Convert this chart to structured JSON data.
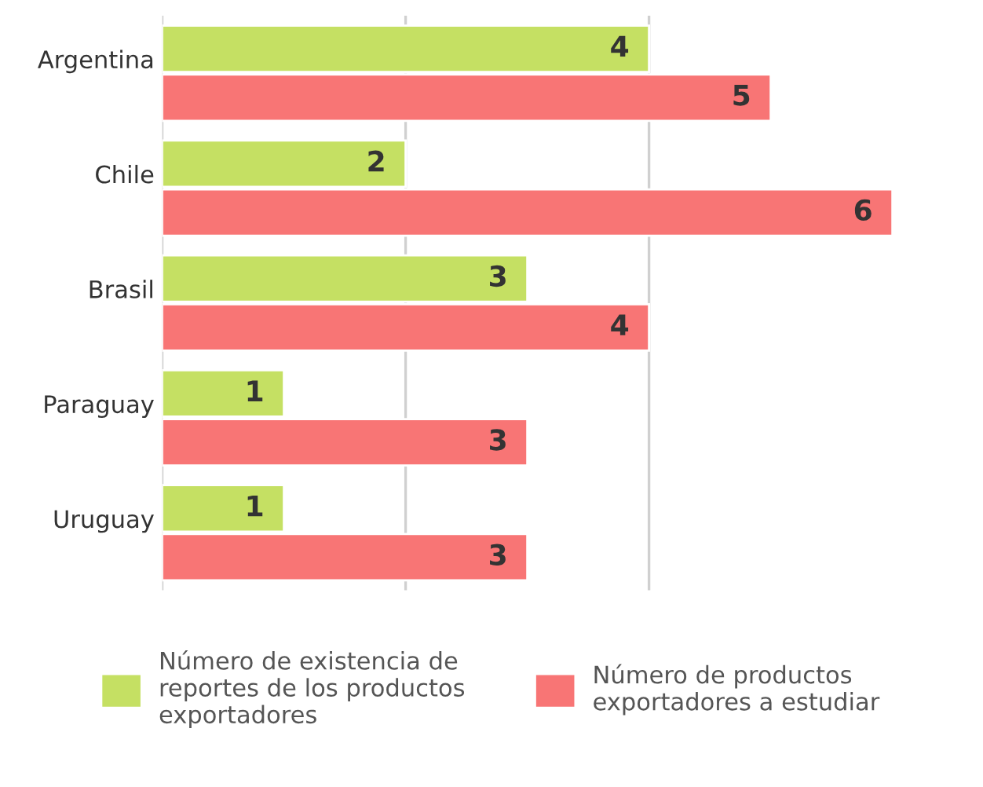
{
  "chart_data": {
    "type": "bar",
    "orientation": "horizontal",
    "categories": [
      "Argentina",
      "Chile",
      "Brasil",
      "Paraguay",
      "Uruguay"
    ],
    "series": [
      {
        "name": "Número de existencia de\nreportes de los productos\nexportadores",
        "color": "#c5e063",
        "values": [
          4,
          2,
          3,
          1,
          1
        ]
      },
      {
        "name": "Número de productos\nexportadores a estudiar",
        "color": "#f87575",
        "values": [
          5,
          6,
          4,
          3,
          3
        ]
      }
    ],
    "ref_lines": [
      {
        "axis": "x",
        "value": 0,
        "color": "#d0d0d0"
      },
      {
        "axis": "x",
        "value": 2,
        "color": "#d0d0d0"
      },
      {
        "axis": "x",
        "value": 4,
        "color": "#d0d0d0"
      }
    ],
    "tick_labels": "y",
    "data_labels": true,
    "legend": "bottom"
  }
}
